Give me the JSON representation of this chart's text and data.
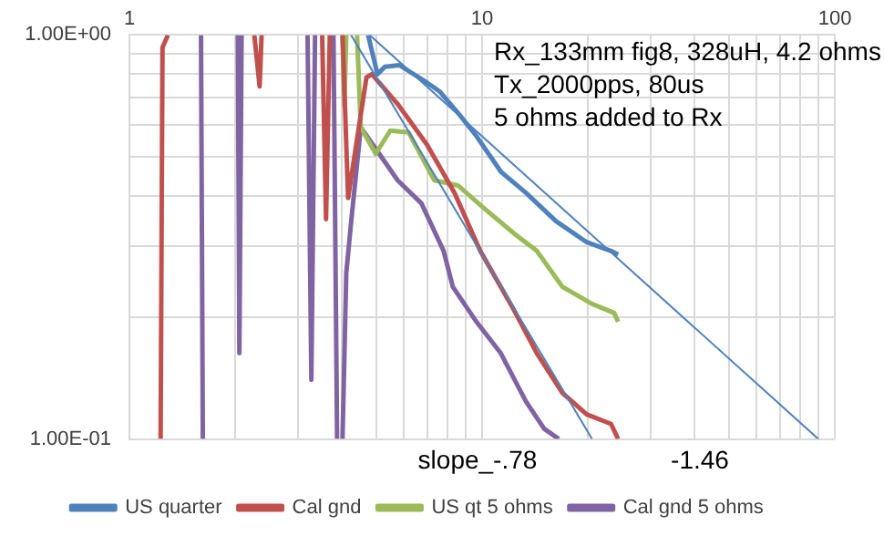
{
  "chart_data": {
    "type": "line",
    "log": "xy",
    "grid": true,
    "legend": "bottom",
    "marker": "none",
    "line_style": "solid",
    "xlim": [
      1,
      100
    ],
    "ylim": [
      0.1,
      1
    ],
    "xticks": [
      1,
      {
        "value": 2,
        "label": null
      },
      {
        "value": 3,
        "label": null
      },
      {
        "value": 4,
        "label": null
      },
      {
        "value": 5,
        "label": null
      },
      {
        "value": 6,
        "label": null
      },
      {
        "value": 7,
        "label": null
      },
      {
        "value": 8,
        "label": null
      },
      {
        "value": 9,
        "label": null
      },
      10,
      {
        "value": 20,
        "label": null
      },
      {
        "value": 30,
        "label": null
      },
      {
        "value": 40,
        "label": null
      },
      {
        "value": 50,
        "label": null
      },
      {
        "value": 60,
        "label": null
      },
      {
        "value": 70,
        "label": null
      },
      {
        "value": 80,
        "label": null
      },
      {
        "value": 90,
        "label": null
      },
      100
    ],
    "yticks": [
      {
        "value": 0.1,
        "label": "1.00E-01"
      },
      {
        "value": 0.2,
        "label": null
      },
      {
        "value": 0.3,
        "label": null
      },
      {
        "value": 0.4,
        "label": null
      },
      {
        "value": 0.5,
        "label": null
      },
      {
        "value": 0.6,
        "label": null
      },
      {
        "value": 0.7,
        "label": null
      },
      {
        "value": 0.8,
        "label": null
      },
      {
        "value": 0.9,
        "label": null
      },
      {
        "value": 1,
        "label": "1.00E+00"
      }
    ],
    "annotations": [
      "Rx_133mm fig8, 328uH, 4.2 ohms",
      "Tx_2000pps, 80us",
      "5 ohms added to Rx",
      "slope_-.78",
      "-1.46"
    ],
    "series": [
      {
        "name": "US quarter",
        "color": "#4f81bd",
        "x": [
          4.75,
          5.05,
          5.3,
          5.83,
          6.98,
          7.59,
          8.55,
          9.64,
          11.3,
          13.3,
          16.2,
          19.8,
          23.2,
          24.3
        ],
        "values": [
          1,
          0.8,
          0.834,
          0.842,
          0.762,
          0.724,
          0.641,
          0.562,
          0.459,
          0.407,
          0.346,
          0.307,
          0.292,
          0.286
        ]
      },
      {
        "name": "Cal gnd",
        "color": "#c0504d",
        "x": [
          1.226,
          1.241,
          1.286,
          null,
          2.26,
          2.34,
          2.37,
          null,
          3.52,
          3.61,
          3.7,
          null,
          4.02,
          4.17,
          4.7,
          4.87,
          5.76,
          6.98,
          8.35,
          9.88,
          12.3,
          14.3,
          16.9,
          19.8,
          23.2,
          24.3
        ],
        "values": [
          0.1,
          0.932,
          1,
          null,
          1,
          0.746,
          1,
          null,
          1,
          0.35,
          1,
          null,
          1,
          0.395,
          0.785,
          0.8,
          0.675,
          0.535,
          0.407,
          0.292,
          0.209,
          0.163,
          0.13,
          0.115,
          0.109,
          0.1
        ]
      },
      {
        "name": "US qt 5 ohms",
        "color": "#9bbb59",
        "x": [
          4.02,
          4.07,
          4.12,
          null,
          4.42,
          4.53,
          4.99,
          5.49,
          6.19,
          7.32,
          8.55,
          10,
          12.3,
          14.3,
          16.9,
          20.5,
          23.7,
          24.3
        ],
        "values": [
          1,
          0.668,
          1,
          null,
          1,
          0.591,
          0.508,
          0.58,
          0.574,
          0.437,
          0.424,
          0.376,
          0.323,
          0.292,
          0.238,
          0.216,
          0.205,
          0.195
        ]
      },
      {
        "name": "Cal gnd 5 ohms",
        "color": "#8064a2",
        "x": [
          1.596,
          1.615,
          null,
          2.03,
          2.05,
          2.08,
          null,
          3.2,
          3.28,
          3.36,
          null,
          3.79,
          3.88,
          null,
          4.02,
          4.12,
          4.27,
          4.53,
          5.11,
          5.76,
          6.73,
          7.78,
          8.26,
          9.64,
          11.3,
          13.3,
          15,
          16.5
        ],
        "values": [
          1,
          0.1,
          null,
          1,
          0.163,
          1,
          null,
          1,
          0.14,
          1,
          null,
          1,
          0.1,
          null,
          0.1,
          0.258,
          0.357,
          0.591,
          0.508,
          0.437,
          0.383,
          0.292,
          0.238,
          0.195,
          0.163,
          0.124,
          0.106,
          0.1
        ]
      },
      {
        "color": "#4f81bd",
        "x": [
          4.8,
          89.8
        ],
        "values": [
          1,
          0.1
        ]
      },
      {
        "color": "#4f81bd",
        "x": [
          4.25,
          20.5
        ],
        "values": [
          1,
          0.1
        ]
      }
    ]
  }
}
